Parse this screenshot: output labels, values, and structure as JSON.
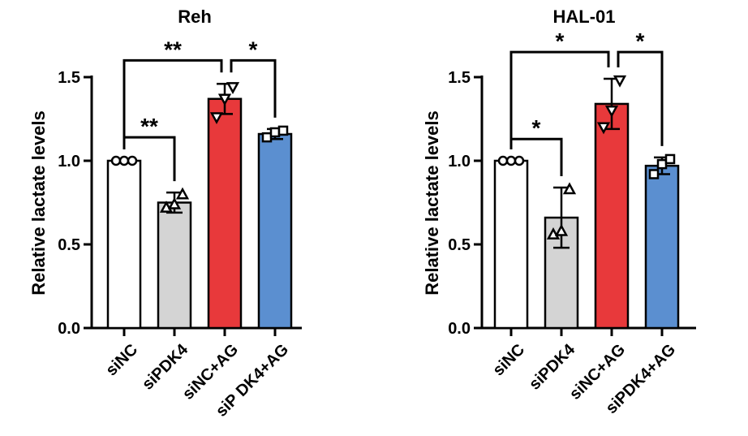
{
  "chart_data": [
    {
      "type": "bar",
      "title": "Reh",
      "xlabel": "",
      "ylabel": "Relative lactate levels",
      "ylim": [
        0,
        1.5
      ],
      "yticks": [
        "0.0",
        "0.5",
        "1.0",
        "1.5"
      ],
      "categories": [
        "siNC",
        "siPDK4",
        "siNC+AG",
        "siP DK4+AG"
      ],
      "values": [
        1.0,
        0.75,
        1.37,
        1.16
      ],
      "errors": [
        0.0,
        0.06,
        0.09,
        0.03
      ],
      "points": [
        [
          1.0,
          1.0,
          1.0
        ],
        [
          0.72,
          0.74,
          0.8
        ],
        [
          1.26,
          1.37,
          1.44
        ],
        [
          1.14,
          1.17,
          1.18
        ]
      ],
      "markers": [
        "circle",
        "triangle",
        "triangle-down",
        "square"
      ],
      "colors": [
        "#ffffff",
        "#d4d4d4",
        "#e8393b",
        "#5b8fd0"
      ],
      "significance": [
        {
          "from": 0,
          "to": 1,
          "label": "**",
          "y": 1.14
        },
        {
          "from": 0,
          "to": 2,
          "label": "**",
          "y": 1.6
        },
        {
          "from": 2,
          "to": 3,
          "label": "*",
          "y": 1.6
        }
      ]
    },
    {
      "type": "bar",
      "title": "HAL-01",
      "xlabel": "",
      "ylabel": "Relative lactate levels",
      "ylim": [
        0,
        1.5
      ],
      "yticks": [
        "0.0",
        "0.5",
        "1.0",
        "1.5"
      ],
      "categories": [
        "siNC",
        "siPDK4",
        "siNC+AG",
        "siPDK4+AG"
      ],
      "values": [
        1.0,
        0.66,
        1.34,
        0.97
      ],
      "errors": [
        0.0,
        0.18,
        0.15,
        0.05
      ],
      "points": [
        [
          1.0,
          1.0,
          1.0
        ],
        [
          0.56,
          0.58,
          0.83
        ],
        [
          1.2,
          1.3,
          1.48
        ],
        [
          0.92,
          0.98,
          1.01
        ]
      ],
      "markers": [
        "circle",
        "triangle",
        "triangle-down",
        "square"
      ],
      "colors": [
        "#ffffff",
        "#d4d4d4",
        "#e8393b",
        "#5b8fd0"
      ],
      "significance": [
        {
          "from": 0,
          "to": 1,
          "label": "*",
          "y": 1.13
        },
        {
          "from": 0,
          "to": 2,
          "label": "*",
          "y": 1.65
        },
        {
          "from": 2,
          "to": 3,
          "label": "*",
          "y": 1.65
        }
      ]
    }
  ]
}
